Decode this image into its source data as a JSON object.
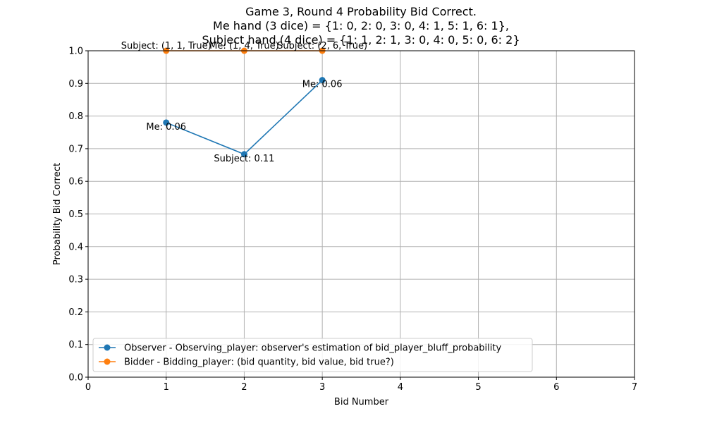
{
  "chart_data": {
    "type": "line",
    "title": [
      "Game 3, Round 4 Probability Bid Correct.",
      "Me hand (3 dice) = {1: 0, 2: 0, 3: 0, 4: 1, 5: 1, 6: 1},",
      "Subject hand (4 dice) = {1: 1, 2: 1, 3: 0, 4: 0, 5: 0, 6: 2}"
    ],
    "xlabel": "Bid Number",
    "ylabel": "Probability Bid Correct",
    "xlim": [
      0,
      7
    ],
    "ylim": [
      0,
      1.0
    ],
    "xticks": [
      0,
      1,
      2,
      3,
      4,
      5,
      6,
      7
    ],
    "yticks": [
      0.0,
      0.1,
      0.2,
      0.3,
      0.4,
      0.5,
      0.6,
      0.7,
      0.8,
      0.9,
      1.0
    ],
    "grid": true,
    "legend_position": "lower-left",
    "series": [
      {
        "name": "Observer - Observing_player: observer's estimation of bid_player_bluff_probability",
        "color": "#1f77b4",
        "x": [
          1,
          2,
          3
        ],
        "y": [
          0.78,
          0.683,
          0.91
        ],
        "labels": [
          "Me: 0.06",
          "Subject: 0.11",
          "Me: 0.06"
        ]
      },
      {
        "name": "Bidder -  Bidding_player: (bid quantity, bid value, bid true?)",
        "color": "#ff7f0e",
        "x": [
          1,
          2,
          3
        ],
        "y": [
          1.0,
          1.0,
          1.0
        ],
        "labels": [
          "Subject: (1, 1, True)",
          "Me: (1, 4, True)",
          "Subject: (2, 6, True)"
        ]
      }
    ]
  }
}
